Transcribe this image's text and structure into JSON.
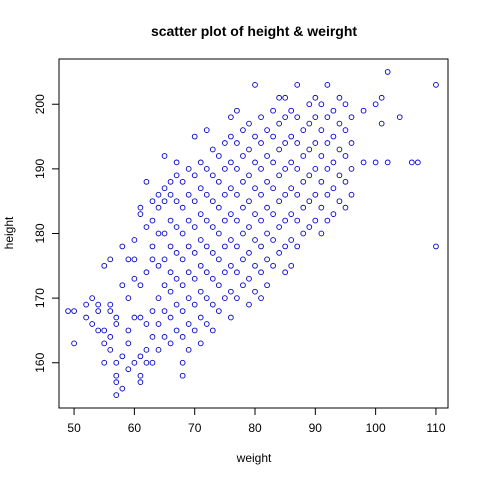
{
  "chart_data": {
    "type": "scatter",
    "title": "scatter plot of height & weirght",
    "xlabel": "weight",
    "ylabel": "height",
    "xlim": [
      47.5,
      112
    ],
    "ylim": [
      153,
      207
    ],
    "xticks": [
      50,
      60,
      70,
      80,
      90,
      100,
      110
    ],
    "yticks": [
      160,
      170,
      180,
      190,
      200
    ],
    "grid": false,
    "legend": "none",
    "marker_color": "#0000cc",
    "marker": "open-circle",
    "series": [
      {
        "points": [
          [
            49,
            168
          ],
          [
            50,
            168
          ],
          [
            50,
            163
          ],
          [
            52,
            169
          ],
          [
            52,
            167
          ],
          [
            53,
            166
          ],
          [
            53,
            170
          ],
          [
            54,
            169
          ],
          [
            54,
            165
          ],
          [
            54,
            168
          ],
          [
            55,
            163
          ],
          [
            55,
            160
          ],
          [
            55,
            175
          ],
          [
            55,
            165
          ],
          [
            56,
            176
          ],
          [
            56,
            169
          ],
          [
            56,
            164
          ],
          [
            56,
            162
          ],
          [
            56,
            168
          ],
          [
            57,
            155
          ],
          [
            57,
            158
          ],
          [
            57,
            157
          ],
          [
            57,
            160
          ],
          [
            57,
            167
          ],
          [
            57,
            166
          ],
          [
            58,
            156
          ],
          [
            58,
            161
          ],
          [
            58,
            178
          ],
          [
            58,
            172
          ],
          [
            59,
            163
          ],
          [
            59,
            165
          ],
          [
            59,
            159
          ],
          [
            59,
            176
          ],
          [
            59,
            170
          ],
          [
            60,
            160
          ],
          [
            60,
            167
          ],
          [
            60,
            173
          ],
          [
            60,
            176
          ],
          [
            60,
            179
          ],
          [
            61,
            157
          ],
          [
            61,
            158
          ],
          [
            61,
            161
          ],
          [
            61,
            183
          ],
          [
            61,
            184
          ],
          [
            61,
            167
          ],
          [
            61,
            172
          ],
          [
            62,
            160
          ],
          [
            62,
            162
          ],
          [
            62,
            166
          ],
          [
            62,
            188
          ],
          [
            62,
            174
          ],
          [
            62,
            181
          ],
          [
            63,
            160
          ],
          [
            63,
            164
          ],
          [
            63,
            168
          ],
          [
            63,
            178
          ],
          [
            63,
            182
          ],
          [
            63,
            185
          ],
          [
            63,
            176
          ],
          [
            64,
            162
          ],
          [
            64,
            166
          ],
          [
            64,
            170
          ],
          [
            64,
            175
          ],
          [
            64,
            180
          ],
          [
            64,
            186
          ],
          [
            64,
            184
          ],
          [
            65,
            192
          ],
          [
            65,
            164
          ],
          [
            65,
            168
          ],
          [
            65,
            172
          ],
          [
            65,
            176
          ],
          [
            65,
            180
          ],
          [
            65,
            185
          ],
          [
            65,
            187
          ],
          [
            66,
            163
          ],
          [
            66,
            167
          ],
          [
            66,
            171
          ],
          [
            66,
            174
          ],
          [
            66,
            178
          ],
          [
            66,
            182
          ],
          [
            66,
            186
          ],
          [
            66,
            188
          ],
          [
            67,
            165
          ],
          [
            67,
            169
          ],
          [
            67,
            173
          ],
          [
            67,
            177
          ],
          [
            67,
            181
          ],
          [
            67,
            185
          ],
          [
            67,
            189
          ],
          [
            67,
            191
          ],
          [
            68,
            158
          ],
          [
            68,
            160
          ],
          [
            68,
            164
          ],
          [
            68,
            168
          ],
          [
            68,
            172
          ],
          [
            68,
            176
          ],
          [
            68,
            180
          ],
          [
            68,
            184
          ],
          [
            68,
            188
          ],
          [
            69,
            162
          ],
          [
            69,
            166
          ],
          [
            69,
            170
          ],
          [
            69,
            174
          ],
          [
            69,
            178
          ],
          [
            69,
            182
          ],
          [
            69,
            186
          ],
          [
            69,
            190
          ],
          [
            70,
            165
          ],
          [
            70,
            169
          ],
          [
            70,
            173
          ],
          [
            70,
            177
          ],
          [
            70,
            181
          ],
          [
            70,
            185
          ],
          [
            70,
            189
          ],
          [
            70,
            195
          ],
          [
            71,
            163
          ],
          [
            71,
            167
          ],
          [
            71,
            171
          ],
          [
            71,
            175
          ],
          [
            71,
            179
          ],
          [
            71,
            183
          ],
          [
            71,
            187
          ],
          [
            71,
            191
          ],
          [
            72,
            166
          ],
          [
            72,
            170
          ],
          [
            72,
            174
          ],
          [
            72,
            178
          ],
          [
            72,
            182
          ],
          [
            72,
            186
          ],
          [
            72,
            190
          ],
          [
            72,
            196
          ],
          [
            73,
            165
          ],
          [
            73,
            169
          ],
          [
            73,
            173
          ],
          [
            73,
            177
          ],
          [
            73,
            181
          ],
          [
            73,
            185
          ],
          [
            73,
            189
          ],
          [
            73,
            193
          ],
          [
            74,
            168
          ],
          [
            74,
            172
          ],
          [
            74,
            176
          ],
          [
            74,
            180
          ],
          [
            74,
            184
          ],
          [
            74,
            188
          ],
          [
            74,
            192
          ],
          [
            75,
            170
          ],
          [
            75,
            174
          ],
          [
            75,
            178
          ],
          [
            75,
            182
          ],
          [
            75,
            186
          ],
          [
            75,
            190
          ],
          [
            75,
            194
          ],
          [
            76,
            167
          ],
          [
            76,
            171
          ],
          [
            76,
            175
          ],
          [
            76,
            179
          ],
          [
            76,
            183
          ],
          [
            76,
            187
          ],
          [
            76,
            191
          ],
          [
            76,
            195
          ],
          [
            76,
            198
          ],
          [
            77,
            170
          ],
          [
            77,
            174
          ],
          [
            77,
            178
          ],
          [
            77,
            182
          ],
          [
            77,
            186
          ],
          [
            77,
            190
          ],
          [
            77,
            194
          ],
          [
            77,
            199
          ],
          [
            78,
            172
          ],
          [
            78,
            176
          ],
          [
            78,
            180
          ],
          [
            78,
            184
          ],
          [
            78,
            188
          ],
          [
            78,
            192
          ],
          [
            78,
            196
          ],
          [
            79,
            169
          ],
          [
            79,
            173
          ],
          [
            79,
            177
          ],
          [
            79,
            181
          ],
          [
            79,
            185
          ],
          [
            79,
            189
          ],
          [
            79,
            193
          ],
          [
            79,
            197
          ],
          [
            80,
            203
          ],
          [
            80,
            171
          ],
          [
            80,
            175
          ],
          [
            80,
            179
          ],
          [
            80,
            183
          ],
          [
            80,
            187
          ],
          [
            80,
            191
          ],
          [
            80,
            195
          ],
          [
            81,
            170
          ],
          [
            81,
            174
          ],
          [
            81,
            178
          ],
          [
            81,
            182
          ],
          [
            81,
            186
          ],
          [
            81,
            190
          ],
          [
            81,
            194
          ],
          [
            81,
            198
          ],
          [
            82,
            172
          ],
          [
            82,
            176
          ],
          [
            82,
            180
          ],
          [
            82,
            184
          ],
          [
            82,
            188
          ],
          [
            82,
            192
          ],
          [
            82,
            196
          ],
          [
            83,
            175
          ],
          [
            83,
            179
          ],
          [
            83,
            183
          ],
          [
            83,
            187
          ],
          [
            83,
            191
          ],
          [
            83,
            195
          ],
          [
            83,
            199
          ],
          [
            84,
            177
          ],
          [
            84,
            181
          ],
          [
            84,
            185
          ],
          [
            84,
            189
          ],
          [
            84,
            193
          ],
          [
            84,
            197
          ],
          [
            84,
            201
          ],
          [
            85,
            174
          ],
          [
            85,
            178
          ],
          [
            85,
            182
          ],
          [
            85,
            186
          ],
          [
            85,
            190
          ],
          [
            85,
            194
          ],
          [
            85,
            198
          ],
          [
            85,
            201
          ],
          [
            86,
            175
          ],
          [
            86,
            179
          ],
          [
            86,
            183
          ],
          [
            86,
            187
          ],
          [
            86,
            191
          ],
          [
            86,
            195
          ],
          [
            86,
            199
          ],
          [
            87,
            203
          ],
          [
            87,
            178
          ],
          [
            87,
            182
          ],
          [
            87,
            186
          ],
          [
            87,
            190
          ],
          [
            87,
            194
          ],
          [
            87,
            198
          ],
          [
            88,
            180
          ],
          [
            88,
            184
          ],
          [
            88,
            188
          ],
          [
            88,
            192
          ],
          [
            88,
            196
          ],
          [
            89,
            181
          ],
          [
            89,
            185
          ],
          [
            89,
            189
          ],
          [
            89,
            193
          ],
          [
            89,
            197
          ],
          [
            89,
            200
          ],
          [
            90,
            182
          ],
          [
            90,
            186
          ],
          [
            90,
            190
          ],
          [
            90,
            194
          ],
          [
            90,
            198
          ],
          [
            90,
            201
          ],
          [
            91,
            180
          ],
          [
            91,
            184
          ],
          [
            91,
            188
          ],
          [
            91,
            192
          ],
          [
            91,
            196
          ],
          [
            91,
            200
          ],
          [
            92,
            203
          ],
          [
            92,
            182
          ],
          [
            92,
            186
          ],
          [
            92,
            190
          ],
          [
            92,
            194
          ],
          [
            92,
            198
          ],
          [
            93,
            183
          ],
          [
            93,
            187
          ],
          [
            93,
            191
          ],
          [
            93,
            195
          ],
          [
            93,
            199
          ],
          [
            94,
            201
          ],
          [
            94,
            185
          ],
          [
            94,
            189
          ],
          [
            94,
            193
          ],
          [
            94,
            197
          ],
          [
            95,
            184
          ],
          [
            95,
            188
          ],
          [
            95,
            192
          ],
          [
            95,
            196
          ],
          [
            95,
            200
          ],
          [
            96,
            198
          ],
          [
            96,
            186
          ],
          [
            96,
            190
          ],
          [
            96,
            194
          ],
          [
            98,
            191
          ],
          [
            98,
            199
          ],
          [
            100,
            191
          ],
          [
            100,
            200
          ],
          [
            101,
            201
          ],
          [
            101,
            197
          ],
          [
            102,
            205
          ],
          [
            102,
            191
          ],
          [
            104,
            198
          ],
          [
            106,
            191
          ],
          [
            107,
            191
          ],
          [
            110,
            203
          ],
          [
            110,
            178
          ]
        ]
      }
    ]
  }
}
